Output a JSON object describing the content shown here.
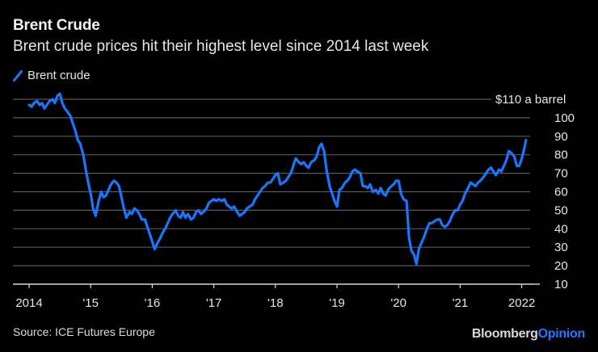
{
  "header": {
    "title": "Brent Crude",
    "subtitle": "Brent crude prices hit their highest level since 2014 last week"
  },
  "legend": {
    "items": [
      {
        "label": "Brent crude",
        "color": "#1a75ff"
      }
    ]
  },
  "footer": {
    "source": "Source: ICE Futures Europe",
    "brand_primary": "Bloomberg",
    "brand_secondary": "Opinion",
    "brand_primary_color": "#d9d9d9",
    "brand_secondary_color": "#1f7bff"
  },
  "chart_data": {
    "type": "line",
    "title": "Brent Crude",
    "subtitle": "Brent crude prices hit their highest level since 2014 last week",
    "xlabel": "",
    "ylabel": "",
    "unit_label": "$110 a barrel",
    "ylim": [
      10,
      110
    ],
    "xlim": [
      2013.95,
      2022.35
    ],
    "y_ticks": [
      10,
      20,
      30,
      40,
      50,
      60,
      70,
      80,
      90,
      100,
      110
    ],
    "y_tick_labels": [
      "10",
      "20",
      "30",
      "40",
      "50",
      "60",
      "70",
      "80",
      "90",
      "100",
      "$110 a barrel"
    ],
    "x_ticks": [
      2014,
      2015,
      2016,
      2017,
      2018,
      2019,
      2020,
      2021,
      2022
    ],
    "x_tick_labels": [
      "2014",
      "'15",
      "'16",
      "'17",
      "'18",
      "'19",
      "'20",
      "'21",
      "2022"
    ],
    "grid": true,
    "legend_position": "top-left",
    "series": [
      {
        "name": "Brent crude",
        "color": "#1a75ff",
        "x": [
          2014.0,
          2014.04,
          2014.08,
          2014.13,
          2014.17,
          2014.21,
          2014.25,
          2014.29,
          2014.33,
          2014.38,
          2014.42,
          2014.46,
          2014.5,
          2014.54,
          2014.58,
          2014.63,
          2014.67,
          2014.71,
          2014.75,
          2014.79,
          2014.83,
          2014.88,
          2014.92,
          2014.96,
          2015.0,
          2015.04,
          2015.08,
          2015.13,
          2015.17,
          2015.21,
          2015.25,
          2015.29,
          2015.33,
          2015.38,
          2015.42,
          2015.46,
          2015.5,
          2015.54,
          2015.58,
          2015.63,
          2015.67,
          2015.71,
          2015.75,
          2015.79,
          2015.83,
          2015.88,
          2015.92,
          2015.96,
          2016.0,
          2016.04,
          2016.08,
          2016.13,
          2016.17,
          2016.21,
          2016.25,
          2016.29,
          2016.33,
          2016.38,
          2016.42,
          2016.46,
          2016.5,
          2016.54,
          2016.58,
          2016.63,
          2016.67,
          2016.71,
          2016.75,
          2016.79,
          2016.83,
          2016.88,
          2016.92,
          2016.96,
          2017.0,
          2017.04,
          2017.08,
          2017.13,
          2017.17,
          2017.21,
          2017.25,
          2017.29,
          2017.33,
          2017.38,
          2017.42,
          2017.46,
          2017.5,
          2017.54,
          2017.58,
          2017.63,
          2017.67,
          2017.71,
          2017.75,
          2017.79,
          2017.83,
          2017.88,
          2017.92,
          2017.96,
          2018.0,
          2018.04,
          2018.08,
          2018.13,
          2018.17,
          2018.21,
          2018.25,
          2018.29,
          2018.33,
          2018.38,
          2018.42,
          2018.46,
          2018.5,
          2018.54,
          2018.58,
          2018.63,
          2018.67,
          2018.71,
          2018.75,
          2018.79,
          2018.83,
          2018.88,
          2018.92,
          2018.96,
          2019.0,
          2019.04,
          2019.08,
          2019.13,
          2019.17,
          2019.21,
          2019.25,
          2019.29,
          2019.33,
          2019.38,
          2019.42,
          2019.46,
          2019.5,
          2019.54,
          2019.58,
          2019.63,
          2019.67,
          2019.71,
          2019.75,
          2019.79,
          2019.83,
          2019.88,
          2019.92,
          2019.96,
          2020.0,
          2020.04,
          2020.08,
          2020.13,
          2020.17,
          2020.21,
          2020.25,
          2020.29,
          2020.33,
          2020.38,
          2020.42,
          2020.46,
          2020.5,
          2020.54,
          2020.58,
          2020.63,
          2020.67,
          2020.71,
          2020.75,
          2020.79,
          2020.83,
          2020.88,
          2020.92,
          2020.96,
          2021.0,
          2021.04,
          2021.08,
          2021.13,
          2021.17,
          2021.21,
          2021.25,
          2021.29,
          2021.33,
          2021.38,
          2021.42,
          2021.46,
          2021.5,
          2021.54,
          2021.58,
          2021.63,
          2021.67,
          2021.71,
          2021.75,
          2021.79,
          2021.83,
          2021.88,
          2021.92,
          2021.96,
          2022.0,
          2022.04,
          2022.07
        ],
        "values": [
          107,
          106,
          108,
          109,
          107,
          108,
          105,
          107,
          109,
          110,
          108,
          112,
          113,
          108,
          105,
          103,
          101,
          97,
          93,
          88,
          86,
          80,
          72,
          65,
          59,
          51,
          47,
          55,
          60,
          57,
          58,
          61,
          64,
          66,
          65,
          63,
          57,
          51,
          46,
          49,
          48,
          51,
          50,
          48,
          45,
          45,
          41,
          37,
          33,
          29,
          32,
          35,
          38,
          40,
          43,
          46,
          48,
          50,
          47,
          46,
          49,
          46,
          48,
          45,
          46,
          49,
          50,
          48,
          49,
          51,
          54,
          55,
          56,
          55,
          56,
          55,
          56,
          53,
          52,
          51,
          52,
          49,
          47,
          48,
          49,
          51,
          52,
          53,
          56,
          58,
          60,
          62,
          63,
          65,
          65,
          67,
          69,
          70,
          64,
          65,
          66,
          68,
          70,
          74,
          78,
          76,
          75,
          76,
          74,
          73,
          76,
          77,
          79,
          84,
          86,
          82,
          72,
          63,
          59,
          55,
          52,
          61,
          62,
          65,
          66,
          68,
          71,
          72,
          71,
          70,
          63,
          63,
          62,
          64,
          60,
          61,
          59,
          62,
          59,
          58,
          61,
          63,
          64,
          66,
          66,
          59,
          56,
          55,
          35,
          28,
          26,
          21,
          29,
          33,
          36,
          40,
          43,
          43,
          44,
          45,
          45,
          42,
          41,
          42,
          44,
          48,
          50,
          50,
          53,
          55,
          59,
          62,
          65,
          64,
          63,
          65,
          66,
          68,
          70,
          72,
          73,
          71,
          69,
          72,
          71,
          74,
          77,
          82,
          81,
          79,
          74,
          74,
          78,
          83,
          88
        ]
      }
    ]
  }
}
